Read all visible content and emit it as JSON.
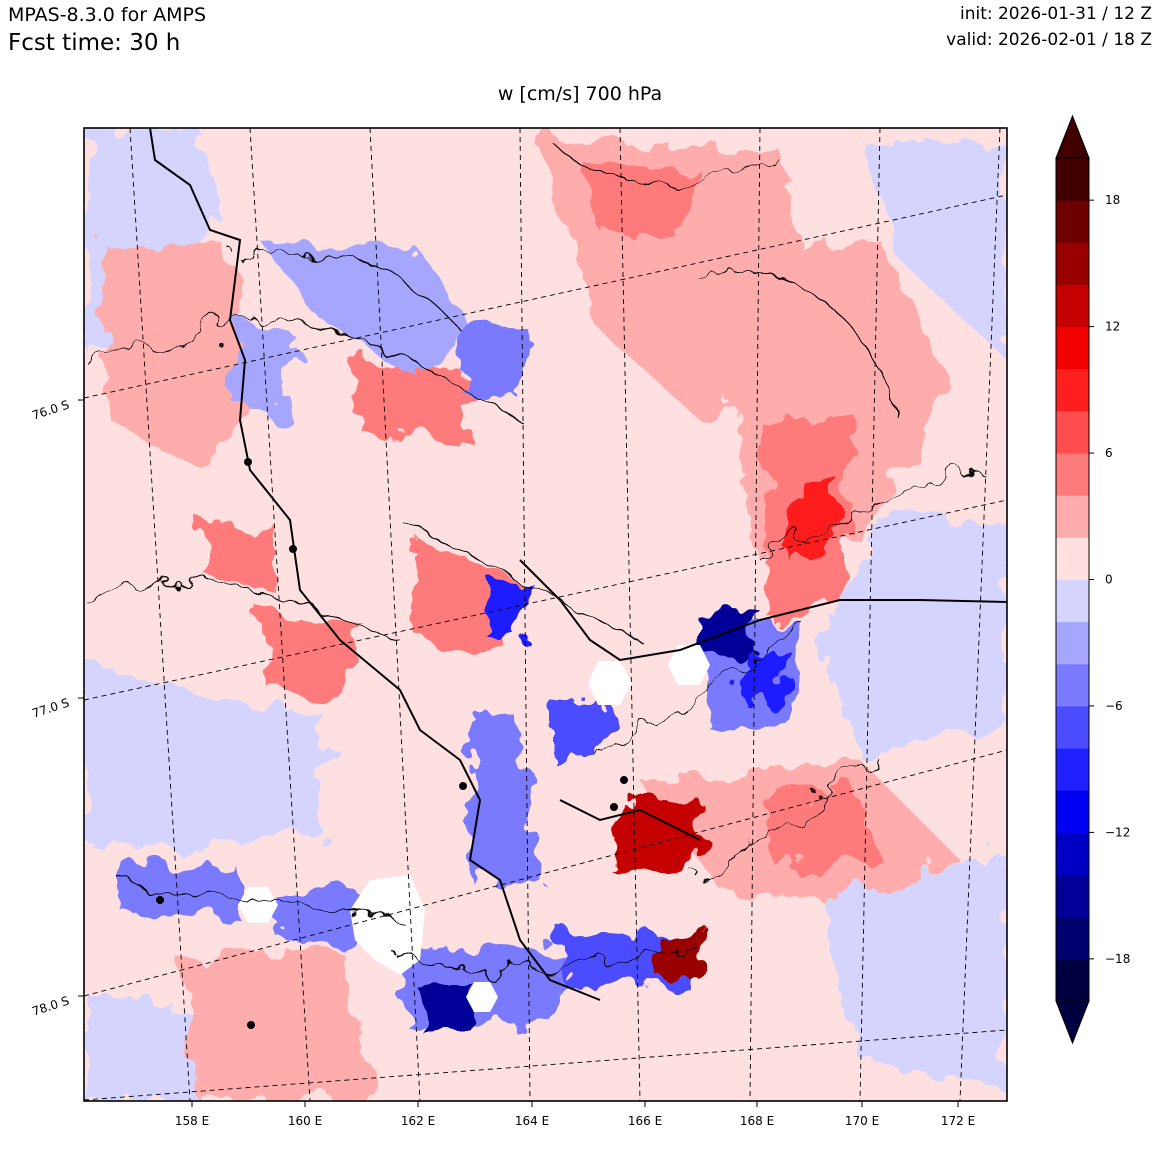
{
  "header": {
    "model": "MPAS-8.3.0 for AMPS",
    "fcst_time": "Fcst time:   30 h",
    "init": "init: 2026-01-31 / 12 Z",
    "valid": "valid: 2026-02-01 / 18 Z"
  },
  "plot_title": "w [cm/s]    700 hPa",
  "map": {
    "lon_labels": [
      "158 E",
      "160 E",
      "162 E",
      "164 E",
      "166 E",
      "168 E",
      "170 E",
      "172 E"
    ],
    "lat_labels": [
      "76.0 S",
      "77.0 S",
      "78.0 S"
    ]
  },
  "colorbar": {
    "levels": [
      -20,
      -18,
      -16,
      -14,
      -12,
      -10,
      -8,
      -6,
      -4,
      -2,
      0,
      2,
      4,
      6,
      8,
      10,
      12,
      14,
      16,
      18,
      20
    ],
    "tick_labels": [
      "18",
      "12",
      "6",
      "0",
      "−6",
      "−12",
      "−18"
    ],
    "colors": [
      "#000040",
      "#00006e",
      "#000099",
      "#0000c5",
      "#0000f2",
      "#1f1fff",
      "#4c4cff",
      "#7a7aff",
      "#a6a6ff",
      "#d4d4ff",
      "#ffe0e0",
      "#ffacac",
      "#ff7a7a",
      "#ff4c4c",
      "#ff1f1f",
      "#f20000",
      "#c50000",
      "#990000",
      "#6e0000",
      "#400000"
    ]
  }
}
